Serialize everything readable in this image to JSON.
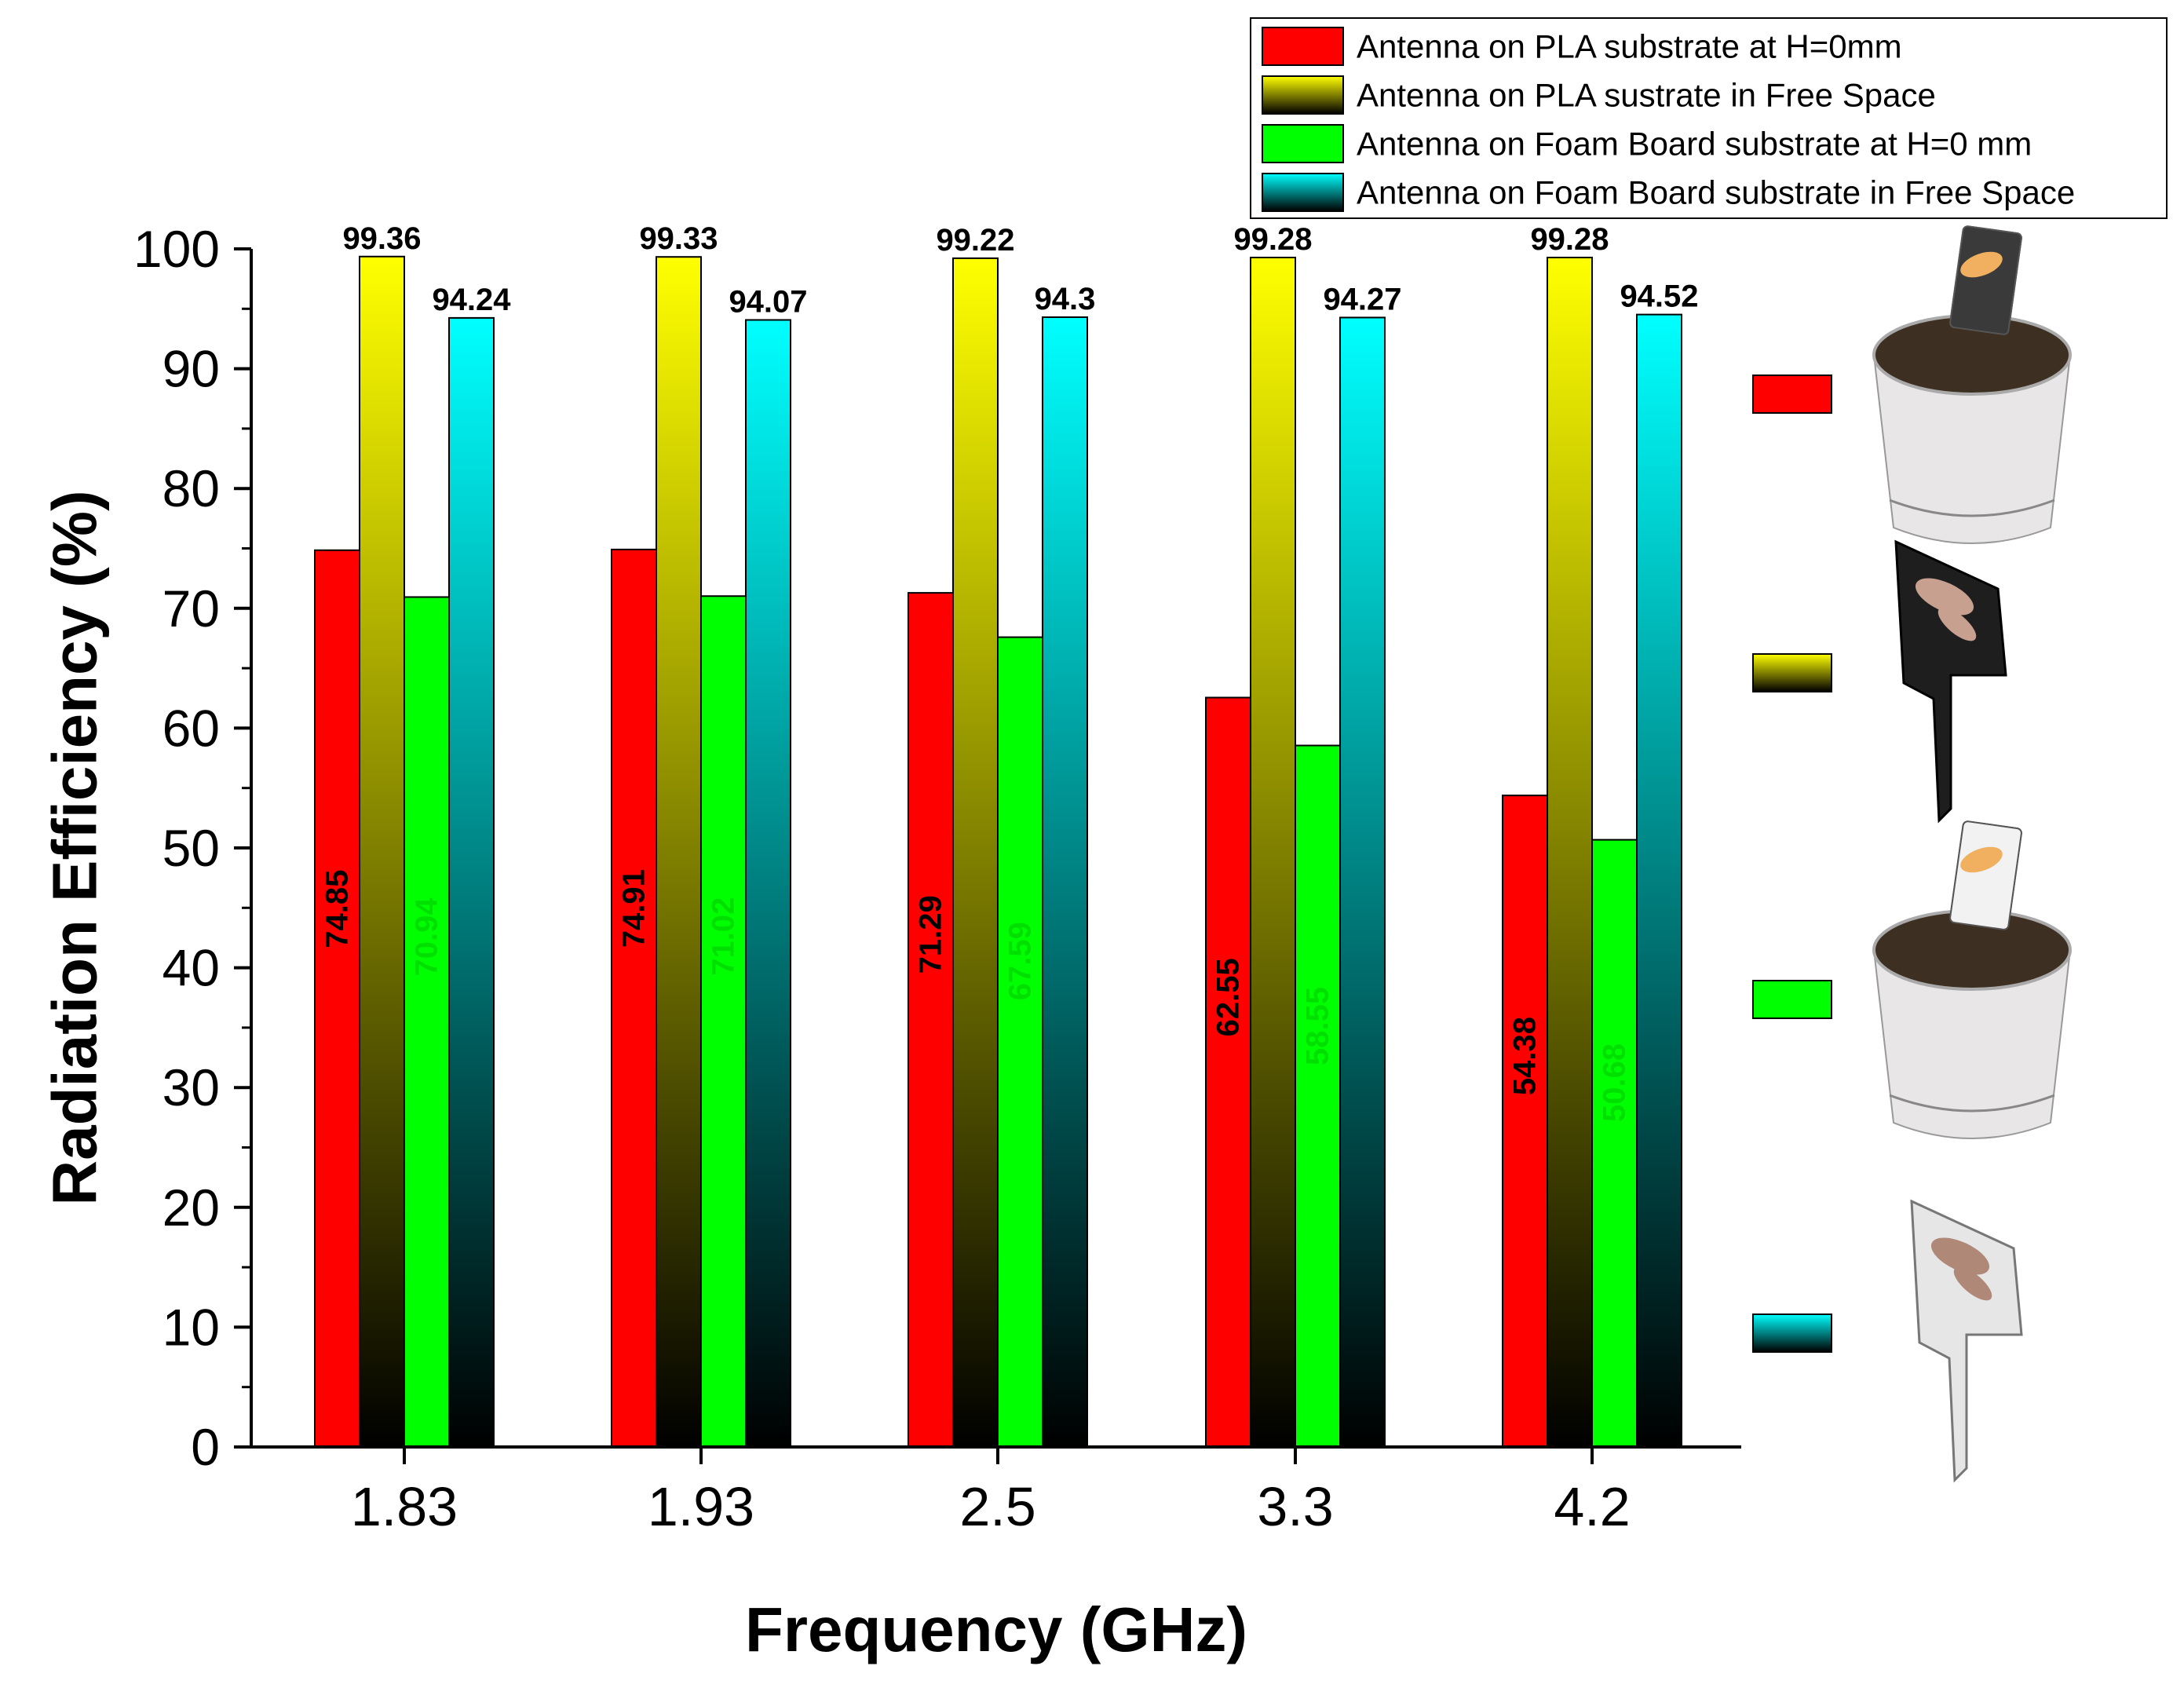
{
  "chart_data": {
    "type": "bar",
    "title": "",
    "xlabel": "Frequency (GHz)",
    "ylabel": "Radiation Efficiency (%)",
    "ylim": [
      0,
      100
    ],
    "yticks": [
      0,
      10,
      20,
      30,
      40,
      50,
      60,
      70,
      80,
      90,
      100
    ],
    "categories": [
      "1.83",
      "1.93",
      "2.5",
      "3.3",
      "4.2"
    ],
    "grid": false,
    "legend_position": "top-right",
    "series": [
      {
        "name": "Antenna on PLA substrate at H=0mm",
        "color": "#ff0000",
        "style": "solid",
        "label_style": "inside-vertical",
        "label_color": "#000000",
        "values": [
          74.85,
          74.91,
          71.29,
          62.55,
          54.38
        ],
        "labels": [
          "74.85",
          "74.91",
          "71.29",
          "62.55",
          "54.38"
        ]
      },
      {
        "name": "Antenna on PLA sustrate in Free  Space",
        "color": "#ffff00",
        "style": "gradient",
        "label_style": "top",
        "values": [
          99.36,
          99.33,
          99.22,
          99.28,
          99.28
        ],
        "labels": [
          "99.36",
          "99.33",
          "99.22",
          "99.28",
          "99.28"
        ]
      },
      {
        "name": "Antenna on Foam Board substrate at H=0 mm",
        "color": "#00ff00",
        "style": "solid",
        "label_style": "inside-vertical",
        "label_color": "#00e000",
        "values": [
          70.94,
          71.02,
          67.59,
          58.55,
          50.68
        ],
        "labels": [
          "70.94",
          "71.02",
          "67.59",
          "58.55",
          "50.68"
        ]
      },
      {
        "name": "Antenna on Foam Board substrate in Free Space",
        "color": "#00ffff",
        "style": "gradient",
        "label_style": "top",
        "values": [
          94.24,
          94.07,
          94.3,
          94.27,
          94.52
        ],
        "labels": [
          "94.24",
          "94.07",
          "94.3",
          "94.27",
          "94.52"
        ]
      }
    ]
  },
  "colors": {
    "axis": "#000000",
    "gradient_bottom": "#000000",
    "bar_stroke": "#000000"
  },
  "side_key": [
    {
      "series": 0,
      "picture": "antenna-in-plant-pot-dark-icon"
    },
    {
      "series": 1,
      "picture": "dark-antenna-stake-icon"
    },
    {
      "series": 2,
      "picture": "antenna-in-plant-pot-light-icon"
    },
    {
      "series": 3,
      "picture": "light-antenna-stake-icon"
    }
  ]
}
